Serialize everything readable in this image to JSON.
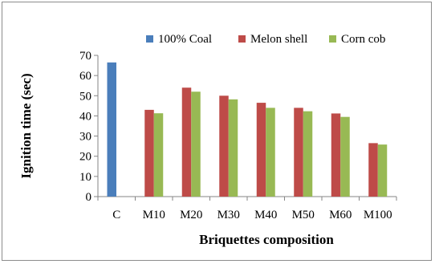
{
  "chart_data": {
    "type": "bar",
    "xlabel": "Briquettes composition",
    "ylabel": "Ignition time (sec)",
    "categories": [
      "C",
      "M10",
      "M20",
      "M30",
      "M40",
      "M50",
      "M60",
      "M100"
    ],
    "ylim": [
      0,
      70
    ],
    "yticks": [
      0,
      10,
      20,
      30,
      40,
      50,
      60,
      70
    ],
    "grid": false,
    "legend_position": "top",
    "series": [
      {
        "name": "100% Coal",
        "color": "#4a7ebb",
        "values": [
          66.5,
          null,
          null,
          null,
          null,
          null,
          null,
          null
        ]
      },
      {
        "name": "Melon shell",
        "color": "#be4b48",
        "values": [
          null,
          43,
          54,
          50,
          46.5,
          44,
          41.2,
          26.5
        ]
      },
      {
        "name": "Corn cob",
        "color": "#98b954",
        "values": [
          null,
          41.3,
          52,
          48.2,
          44,
          42.3,
          39.5,
          25.8
        ]
      }
    ]
  }
}
